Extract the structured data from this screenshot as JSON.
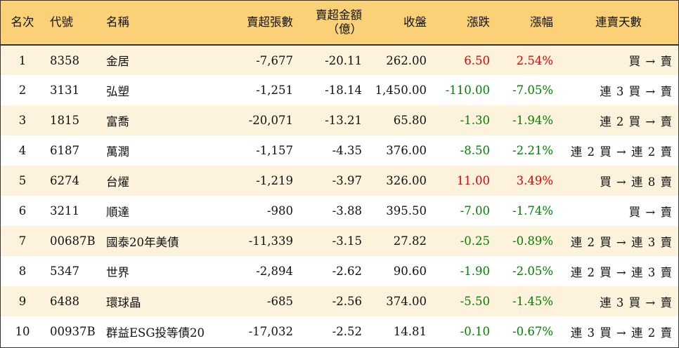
{
  "headers": {
    "rank": "名次",
    "code": "代號",
    "name": "名稱",
    "net_sell_shares": "賣超張數",
    "net_sell_amount_l1": "賣超金額",
    "net_sell_amount_l2": "（億）",
    "close": "收盤",
    "change": "漲跌",
    "pct": "漲幅",
    "streak": "連賣天數"
  },
  "rows": [
    {
      "rank": "1",
      "code": "8358",
      "name": "金居",
      "shares": "-7,677",
      "amount": "-20.11",
      "close": "262.00",
      "change": "6.50",
      "pct": "2.54%",
      "streak": "買 → 賣",
      "trend": "up"
    },
    {
      "rank": "2",
      "code": "3131",
      "name": "弘塑",
      "shares": "-1,251",
      "amount": "-18.14",
      "close": "1,450.00",
      "change": "-110.00",
      "pct": "-7.05%",
      "streak": "連 3 買 → 賣",
      "trend": "down"
    },
    {
      "rank": "3",
      "code": "1815",
      "name": "富喬",
      "shares": "-20,071",
      "amount": "-13.21",
      "close": "65.80",
      "change": "-1.30",
      "pct": "-1.94%",
      "streak": "連 2 買 → 賣",
      "trend": "down"
    },
    {
      "rank": "4",
      "code": "6187",
      "name": "萬潤",
      "shares": "-1,157",
      "amount": "-4.35",
      "close": "376.00",
      "change": "-8.50",
      "pct": "-2.21%",
      "streak": "連 2 買 → 連 2 賣",
      "trend": "down"
    },
    {
      "rank": "5",
      "code": "6274",
      "name": "台燿",
      "shares": "-1,219",
      "amount": "-3.97",
      "close": "326.00",
      "change": "11.00",
      "pct": "3.49%",
      "streak": "買 → 連 8 賣",
      "trend": "up"
    },
    {
      "rank": "6",
      "code": "3211",
      "name": "順達",
      "shares": "-980",
      "amount": "-3.88",
      "close": "395.50",
      "change": "-7.00",
      "pct": "-1.74%",
      "streak": "買 → 賣",
      "trend": "down"
    },
    {
      "rank": "7",
      "code": "00687B",
      "name": "國泰20年美債",
      "shares": "-11,339",
      "amount": "-3.15",
      "close": "27.82",
      "change": "-0.25",
      "pct": "-0.89%",
      "streak": "連 2 買 → 連 3 賣",
      "trend": "down"
    },
    {
      "rank": "8",
      "code": "5347",
      "name": "世界",
      "shares": "-2,894",
      "amount": "-2.62",
      "close": "90.60",
      "change": "-1.90",
      "pct": "-2.05%",
      "streak": "連 2 買 → 連 3 賣",
      "trend": "down"
    },
    {
      "rank": "9",
      "code": "6488",
      "name": "環球晶",
      "shares": "-685",
      "amount": "-2.56",
      "close": "374.00",
      "change": "-5.50",
      "pct": "-1.45%",
      "streak": "連 3 買 → 賣",
      "trend": "down"
    },
    {
      "rank": "10",
      "code": "00937B",
      "name": "群益ESG投等債20",
      "shares": "-17,032",
      "amount": "-2.52",
      "close": "14.81",
      "change": "-0.10",
      "pct": "-0.67%",
      "streak": "連 3 買 → 連 2 賣",
      "trend": "down"
    }
  ],
  "colors": {
    "header_bg": "#fbd177",
    "odd_row_bg": "#fdf2dc",
    "up": "#e00000",
    "down": "#008000"
  }
}
